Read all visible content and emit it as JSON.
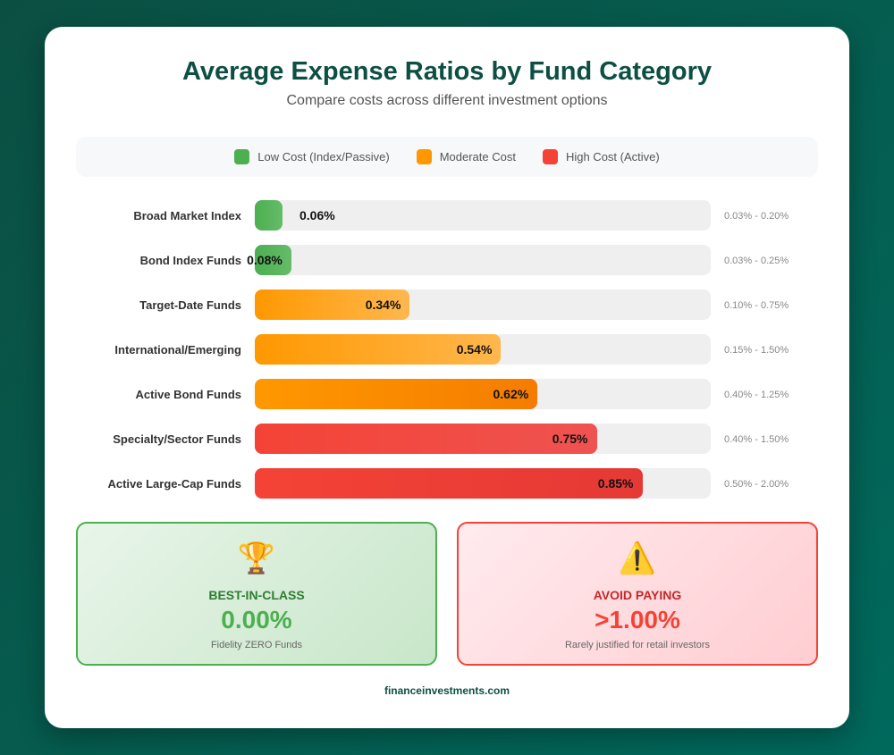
{
  "title": "Average Expense Ratios by Fund Category",
  "subtitle": "Compare costs across different investment options",
  "legend": [
    {
      "label": "Low Cost (Index/Passive)",
      "color": "#4caf50"
    },
    {
      "label": "Moderate Cost",
      "color": "#ff9800"
    },
    {
      "label": "High Cost (Active)",
      "color": "#f44336"
    }
  ],
  "chart_data": {
    "type": "bar",
    "orientation": "horizontal",
    "xlim": [
      0,
      1.0
    ],
    "unit": "%",
    "categories": [
      "Broad Market Index",
      "Bond Index Funds",
      "Target-Date Funds",
      "International/Emerging",
      "Active Bond Funds",
      "Specialty/Sector Funds",
      "Active Large-Cap Funds"
    ],
    "values": [
      0.06,
      0.08,
      0.34,
      0.54,
      0.62,
      0.75,
      0.85
    ],
    "value_labels": [
      "0.06%",
      "0.08%",
      "0.34%",
      "0.54%",
      "0.62%",
      "0.75%",
      "0.85%"
    ],
    "ranges": [
      "0.03% - 0.20%",
      "0.03% - 0.25%",
      "0.10% - 0.75%",
      "0.15% - 1.50%",
      "0.40% - 1.25%",
      "0.40% - 1.50%",
      "0.50% - 2.00%"
    ],
    "cost_level": [
      "low",
      "low",
      "moderate",
      "moderate",
      "moderate",
      "high",
      "high"
    ],
    "bar_gradients": [
      [
        "#4caf50",
        "#66bb6a"
      ],
      [
        "#4caf50",
        "#66bb6a"
      ],
      [
        "#ff9800",
        "#ffb74d"
      ],
      [
        "#ff9800",
        "#ffb74d"
      ],
      [
        "#ff9800",
        "#f57c00"
      ],
      [
        "#f44336",
        "#ef5350"
      ],
      [
        "#f44336",
        "#e53935"
      ]
    ]
  },
  "cards": [
    {
      "icon": "trophy-icon",
      "glyph": "🏆",
      "heading": "BEST-IN-CLASS",
      "value": "0.00%",
      "note": "Fidelity ZERO Funds"
    },
    {
      "icon": "warning-icon",
      "glyph": "⚠️",
      "heading": "AVOID PAYING",
      "value": ">1.00%",
      "note": "Rarely justified for retail investors"
    }
  ],
  "footer": "financeinvestments.com"
}
